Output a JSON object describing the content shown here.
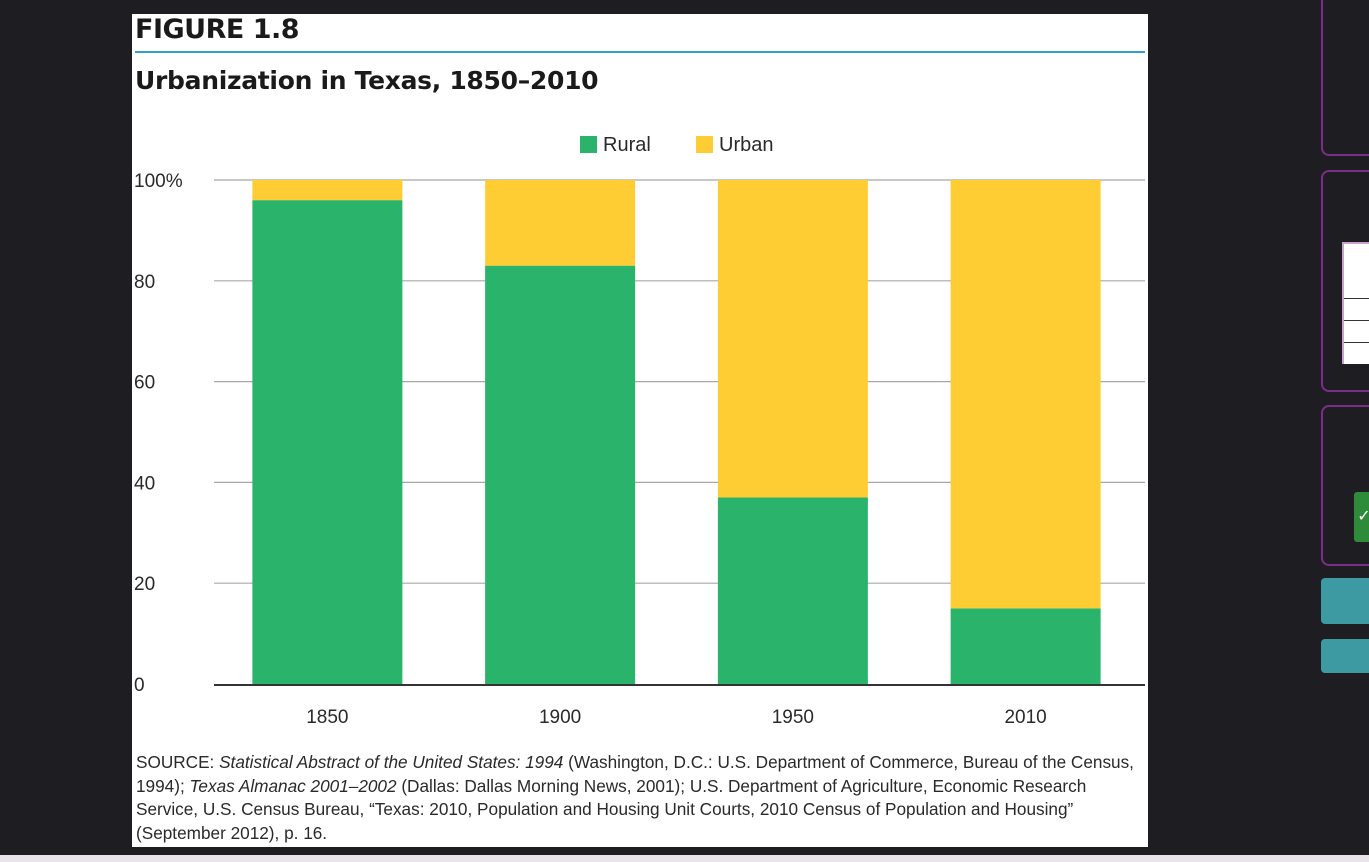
{
  "figure": {
    "label": "FIGURE 1.8",
    "title": "Urbanization in Texas, 1850–2010",
    "source": {
      "prefix": "SOURCE: ",
      "parts": [
        {
          "text": "Statistical Abstract of the United States: 1994",
          "italic": true
        },
        {
          "text": " (Washington, D.C.: U.S. Department of Commerce, Bureau of the Census, 1994); ",
          "italic": false
        },
        {
          "text": "Texas Almanac 2001–2002",
          "italic": true
        },
        {
          "text": " (Dallas: Dallas Morning News, 2001); U.S. Department of Agriculture, Economic Research Service, U.S. Census Bureau, “Texas: 2010, Population and Housing Unit Courts, 2010 Census of Population and Housing” (September 2012), p. 16.",
          "italic": false
        }
      ]
    }
  },
  "chart_data": {
    "type": "bar",
    "stacked": true,
    "categories": [
      "1850",
      "1900",
      "1950",
      "2010"
    ],
    "series": [
      {
        "name": "Rural",
        "color": "#2ab36a",
        "values": [
          96,
          83,
          37,
          15
        ]
      },
      {
        "name": "Urban",
        "color": "#fecd34",
        "values": [
          4,
          17,
          63,
          85
        ]
      }
    ],
    "title": "Urbanization in Texas, 1850–2010",
    "xlabel": "",
    "ylabel": "",
    "ylim": [
      0,
      100
    ],
    "yticks": [
      0,
      20,
      40,
      60,
      80,
      100
    ],
    "ytick_labels": [
      "0",
      "20",
      "40",
      "60",
      "80",
      "100%"
    ],
    "grid": true,
    "legend_position": "top-center"
  },
  "side_widgets": {
    "mini_check_icon": "check-icon"
  },
  "colors": {
    "accent_rule": "#3a9ad6",
    "panel_border": "#7a2f86",
    "teal_button": "#3d9aa3"
  }
}
